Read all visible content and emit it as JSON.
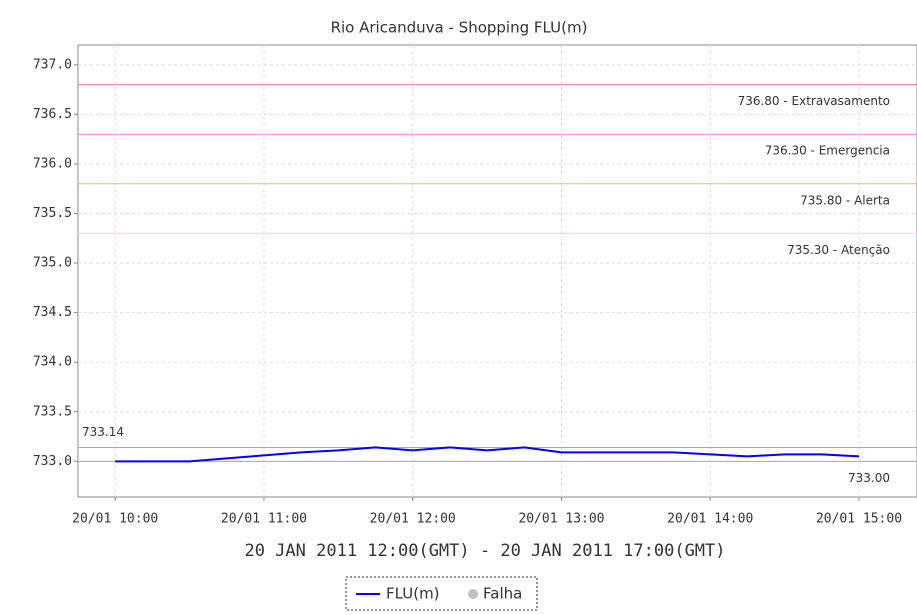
{
  "chart_data": {
    "type": "line",
    "title": "Rio Aricanduva - Shopping FLU(m)",
    "xlabel": "20 JAN 2011 12:00(GMT) - 20 JAN 2011 17:00(GMT)",
    "x": [
      10.0,
      10.25,
      10.5,
      10.75,
      11.0,
      11.25,
      11.5,
      11.75,
      12.0,
      12.25,
      12.5,
      12.75,
      13.0,
      13.25,
      13.5,
      13.75,
      14.0,
      14.25,
      14.5,
      14.75,
      15.0
    ],
    "series": [
      {
        "name": "FLU(m)",
        "color": "#0000ff",
        "values": [
          733.0,
          733.0,
          733.0,
          733.03,
          733.06,
          733.09,
          733.11,
          733.14,
          733.11,
          733.14,
          733.11,
          733.14,
          733.09,
          733.09,
          733.09,
          733.09,
          733.07,
          733.05,
          733.07,
          733.07,
          733.05
        ]
      }
    ],
    "failure_legend": {
      "name": "Falha",
      "color": "#c0c0c0"
    },
    "thresholds": [
      {
        "value": 736.8,
        "label": "736.80 - Extravasamento",
        "color": "#f08080"
      },
      {
        "value": 736.3,
        "label": "736.30 - Emergencia",
        "color": "#ee82ee"
      },
      {
        "value": 735.8,
        "label": "735.80 - Alerta",
        "color": "#f4b183"
      },
      {
        "value": 735.3,
        "label": "735.30 - Atenção",
        "color": "#f0e68c"
      }
    ],
    "max_marker": {
      "value": 733.14,
      "label": "733.14"
    },
    "min_marker": {
      "value": 733.0,
      "label": "733.00"
    },
    "xlim": [
      9.75,
      15.39
    ],
    "ylim": [
      732.64,
      737.2
    ],
    "xticks": [
      {
        "value": 10,
        "label": "20/01 10:00"
      },
      {
        "value": 11,
        "label": "20/01 11:00"
      },
      {
        "value": 12,
        "label": "20/01 12:00"
      },
      {
        "value": 13,
        "label": "20/01 13:00"
      },
      {
        "value": 14,
        "label": "20/01 14:00"
      },
      {
        "value": 15,
        "label": "20/01 15:00"
      }
    ],
    "yticks": [
      {
        "value": 733,
        "label": "733.0"
      },
      {
        "value": 733.5,
        "label": "733.5"
      },
      {
        "value": 734,
        "label": "734.0"
      },
      {
        "value": 734.5,
        "label": "734.5"
      },
      {
        "value": 735,
        "label": "735.0"
      },
      {
        "value": 735.5,
        "label": "735.5"
      },
      {
        "value": 736,
        "label": "736.0"
      },
      {
        "value": 736.5,
        "label": "736.5"
      },
      {
        "value": 737,
        "label": "737.0"
      }
    ],
    "grid": true
  }
}
